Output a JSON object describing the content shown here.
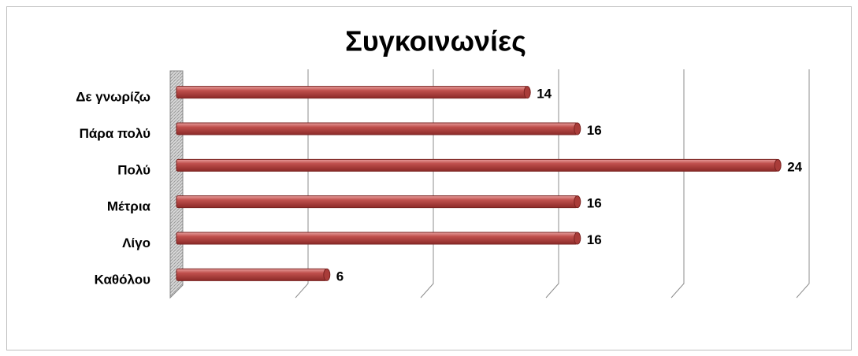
{
  "chart_data": {
    "type": "bar",
    "orientation": "horizontal",
    "title": "Συγκοινωνίες",
    "categories": [
      "Δε γνωρίζω",
      "Πάρα πολύ",
      "Πολύ",
      "Μέτρια",
      "Λίγο",
      "Καθόλου"
    ],
    "values": [
      14,
      16,
      24,
      16,
      16,
      6
    ],
    "color": "#c0504d",
    "xlim": [
      0,
      25
    ],
    "xticks": [
      0,
      5,
      10,
      15,
      20,
      25
    ],
    "grid": true
  }
}
